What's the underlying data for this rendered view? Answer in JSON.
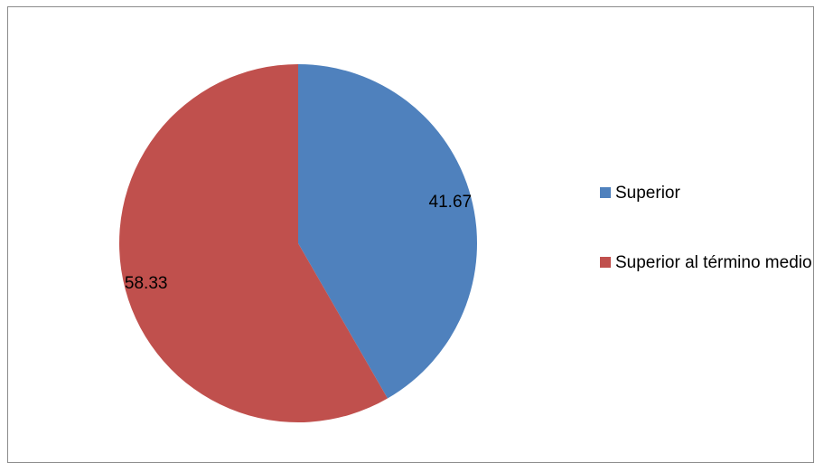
{
  "chart_data": {
    "type": "pie",
    "slices": [
      {
        "label": "Superior",
        "value": 41.67,
        "color": "#4f81bd"
      },
      {
        "label": "Superior al término medio",
        "value": 58.33,
        "color": "#c0504d"
      }
    ],
    "data_labels": [
      "41.67",
      "58.33"
    ],
    "start_angle_deg": 0,
    "direction": "clockwise",
    "legend_position": "right"
  },
  "legend": {
    "items": [
      {
        "label": "Superior",
        "color": "#4f81bd"
      },
      {
        "label": "Superior al término medio",
        "color": "#c0504d"
      }
    ]
  }
}
